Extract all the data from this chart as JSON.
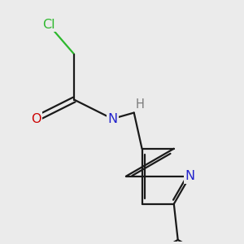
{
  "bg_color": "#ebebeb",
  "bond_color": "#1a1a1a",
  "cl_color": "#2db82d",
  "o_color": "#cc0000",
  "n_color": "#2222cc",
  "h_color": "#7a7a7a",
  "line_width": 1.6,
  "dbo": 0.032,
  "font_size_atom": 11.5,
  "font_size_h": 10.5,
  "xlim": [
    0,
    3.0
  ],
  "ylim": [
    0,
    3.0
  ]
}
